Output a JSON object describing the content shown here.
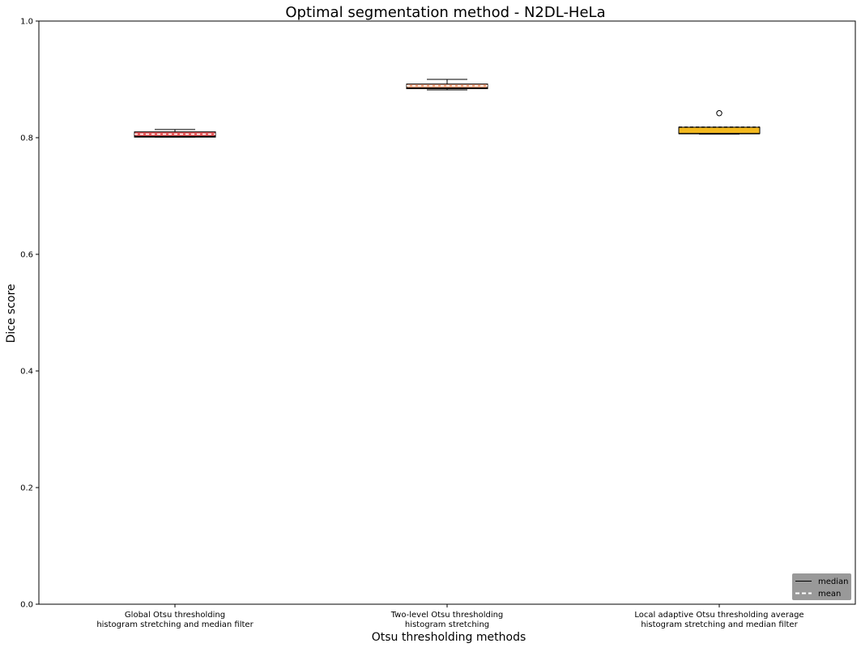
{
  "chart_data": {
    "type": "boxplot",
    "title": "Optimal segmentation method - N2DL-HeLa",
    "xlabel": "Otsu thresholding methods",
    "ylabel": "Dice score",
    "ylim": [
      0,
      1.0
    ],
    "yticks": [
      "0.0",
      "0.2",
      "0.4",
      "0.6",
      "0.8",
      "1.0"
    ],
    "grid": false,
    "legend_position": "lower-right",
    "legend": [
      {
        "label": "median",
        "style": "solid",
        "color": "#000000"
      },
      {
        "label": "mean",
        "style": "dashed",
        "color": "#ffffff"
      }
    ],
    "categories": [
      {
        "line1": "Global Otsu thresholding",
        "line2": "histogram stretching and median filter"
      },
      {
        "line1": "Two-level Otsu thresholding",
        "line2": "histogram stretching"
      },
      {
        "line1": "Local adaptive Otsu thresholding average",
        "line2": "histogram stretching and median filter"
      }
    ],
    "boxes": [
      {
        "whisker_low": 0.801,
        "q1": 0.801,
        "median": 0.802,
        "mean": 0.806,
        "q3": 0.81,
        "whisker_high": 0.814,
        "outliers": [],
        "color": "#e8595b",
        "mean_color": "#ffffff"
      },
      {
        "whisker_low": 0.882,
        "q1": 0.884,
        "median": 0.885,
        "mean": 0.889,
        "q3": 0.892,
        "whisker_high": 0.9,
        "outliers": [],
        "color": "#f4a582",
        "mean_color": "#ffffff"
      },
      {
        "whisker_low": 0.806,
        "q1": 0.807,
        "median": 0.807,
        "mean": 0.818,
        "q3": 0.818,
        "whisker_high": 0.818,
        "outliers": [
          0.842
        ],
        "color": "#f2b81e",
        "mean_color": "#000000"
      }
    ]
  }
}
